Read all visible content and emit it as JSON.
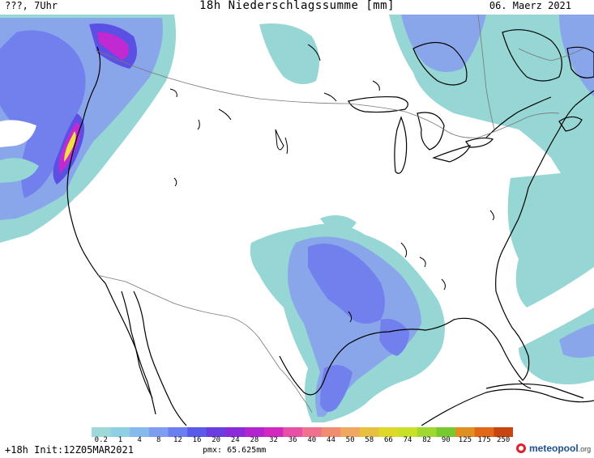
{
  "header": {
    "left": "???, 7Uhr",
    "title": "18h Niederschlagssumme [mm]",
    "right": "06. Maerz 2021"
  },
  "footer": {
    "forecast": "+18h Init:12Z05MAR2021",
    "pmx": "pmx: 65.625mm",
    "logo_main": "meteopool",
    "logo_suffix": ".org"
  },
  "legend": {
    "ticks": [
      "0.2",
      "1",
      "4",
      "8",
      "12",
      "16",
      "20",
      "24",
      "28",
      "32",
      "36",
      "40",
      "44",
      "50",
      "58",
      "66",
      "74",
      "82",
      "90",
      "125",
      "175",
      "250"
    ],
    "colors": [
      "#9ed8d8",
      "#8ecfe3",
      "#86b9ec",
      "#7d9df0",
      "#6c7ff0",
      "#5a5ae8",
      "#6a3de0",
      "#8a2ad8",
      "#b224d0",
      "#d228c0",
      "#e850a8",
      "#f07090",
      "#f08c70",
      "#f0a860",
      "#e8c040",
      "#e0d828",
      "#c8e028",
      "#a0d830",
      "#78c830",
      "#e09020",
      "#e06818",
      "#c84410"
    ]
  },
  "map": {
    "colors": {
      "background": "#ffffff",
      "light_precip": "#96d6d4",
      "blue_precip": "#8aa6ea",
      "moderate_precip": "#7280ee",
      "heavy_precip": "#5c4fe4",
      "magenta": "#c02ad0",
      "orange": "#f09050",
      "yellow": "#f0e040",
      "coastline": "#000000",
      "border": "#777777"
    }
  }
}
